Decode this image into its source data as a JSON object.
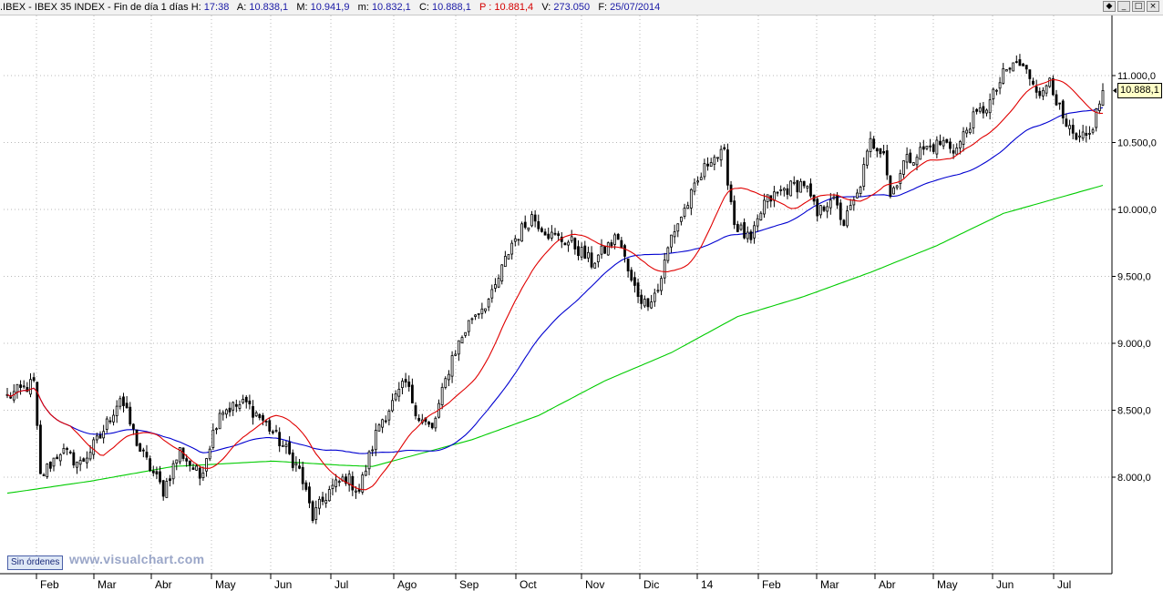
{
  "header": {
    "prefix": ".IBEX - IBEX 35 INDEX - Fin de día 1 días",
    "h_label": "H:",
    "h_value": "17:38",
    "a_label": "A:",
    "a_value": "10.838,1",
    "m_label": "M:",
    "m_value": "10.941,9",
    "mm_label": "m:",
    "mm_value": "10.832,1",
    "c_label": "C:",
    "c_value": "10.888,1",
    "p_label": "P :",
    "p_value": "10.881,4",
    "v_label": "V:",
    "v_value": "273.050",
    "f_label": "F:",
    "f_value": "25/07/2014"
  },
  "window_buttons": [
    "◆",
    "_",
    "□",
    "×"
  ],
  "status_button": "Sin órdenes",
  "watermark": "www.visualchart.com",
  "last_price_tag": "10.888,1",
  "colors": {
    "background": "#ffffff",
    "grid": "#b8b8b8",
    "candle": "#000000",
    "ma_short": "#e00000",
    "ma_medium": "#0000d0",
    "ma_long": "#00cc00",
    "price_tag_bg": "#ffffc8"
  },
  "chart_data": {
    "type": "candlestick",
    "title": ".IBEX - IBEX 35 INDEX",
    "ylim": [
      7400,
      11300
    ],
    "y_ticks": [
      {
        "value": 8000,
        "label": "8.000,0"
      },
      {
        "value": 8500,
        "label": "8.500,0"
      },
      {
        "value": 9000,
        "label": "9.000,0"
      },
      {
        "value": 9500,
        "label": "9.500,0"
      },
      {
        "value": 10000,
        "label": "10.000,0"
      },
      {
        "value": 10500,
        "label": "10.500,0"
      },
      {
        "value": 11000,
        "label": "11.000,0"
      }
    ],
    "x_ticks": [
      "Feb",
      "Mar",
      "Abr",
      "May",
      "Jun",
      "Jul",
      "Ago",
      "Sep",
      "Oct",
      "Nov",
      "Dic",
      "14",
      "Feb",
      "Mar",
      "Abr",
      "May",
      "Jun",
      "Jul"
    ],
    "grid": true,
    "close_anchors": [
      {
        "i": 0,
        "v": 8600
      },
      {
        "i": 8,
        "v": 8700
      },
      {
        "i": 10,
        "v": 8000
      },
      {
        "i": 16,
        "v": 8200
      },
      {
        "i": 22,
        "v": 8100
      },
      {
        "i": 28,
        "v": 8300
      },
      {
        "i": 34,
        "v": 8600
      },
      {
        "i": 40,
        "v": 8200
      },
      {
        "i": 47,
        "v": 7900
      },
      {
        "i": 52,
        "v": 8200
      },
      {
        "i": 58,
        "v": 8000
      },
      {
        "i": 64,
        "v": 8500
      },
      {
        "i": 72,
        "v": 8550
      },
      {
        "i": 78,
        "v": 8400
      },
      {
        "i": 84,
        "v": 8200
      },
      {
        "i": 88,
        "v": 8050
      },
      {
        "i": 92,
        "v": 7700
      },
      {
        "i": 97,
        "v": 7900
      },
      {
        "i": 102,
        "v": 8000
      },
      {
        "i": 106,
        "v": 7900
      },
      {
        "i": 112,
        "v": 8400
      },
      {
        "i": 120,
        "v": 8700
      },
      {
        "i": 124,
        "v": 8450
      },
      {
        "i": 128,
        "v": 8350
      },
      {
        "i": 134,
        "v": 8900
      },
      {
        "i": 140,
        "v": 9200
      },
      {
        "i": 146,
        "v": 9350
      },
      {
        "i": 152,
        "v": 9750
      },
      {
        "i": 158,
        "v": 9950
      },
      {
        "i": 164,
        "v": 9800
      },
      {
        "i": 170,
        "v": 9750
      },
      {
        "i": 176,
        "v": 9600
      },
      {
        "i": 180,
        "v": 9700
      },
      {
        "i": 184,
        "v": 9800
      },
      {
        "i": 188,
        "v": 9450
      },
      {
        "i": 192,
        "v": 9300
      },
      {
        "i": 196,
        "v": 9400
      },
      {
        "i": 200,
        "v": 9800
      },
      {
        "i": 206,
        "v": 10100
      },
      {
        "i": 212,
        "v": 10400
      },
      {
        "i": 216,
        "v": 10400
      },
      {
        "i": 219,
        "v": 9900
      },
      {
        "i": 224,
        "v": 9750
      },
      {
        "i": 228,
        "v": 10050
      },
      {
        "i": 234,
        "v": 10150
      },
      {
        "i": 240,
        "v": 10200
      },
      {
        "i": 244,
        "v": 9950
      },
      {
        "i": 248,
        "v": 10100
      },
      {
        "i": 252,
        "v": 9900
      },
      {
        "i": 256,
        "v": 10100
      },
      {
        "i": 260,
        "v": 10500
      },
      {
        "i": 264,
        "v": 10450
      },
      {
        "i": 266,
        "v": 10100
      },
      {
        "i": 270,
        "v": 10350
      },
      {
        "i": 276,
        "v": 10450
      },
      {
        "i": 282,
        "v": 10500
      },
      {
        "i": 286,
        "v": 10450
      },
      {
        "i": 290,
        "v": 10650
      },
      {
        "i": 296,
        "v": 10800
      },
      {
        "i": 300,
        "v": 11000
      },
      {
        "i": 304,
        "v": 11100
      },
      {
        "i": 308,
        "v": 11000
      },
      {
        "i": 312,
        "v": 10850
      },
      {
        "i": 314,
        "v": 11000
      },
      {
        "i": 318,
        "v": 10650
      },
      {
        "i": 322,
        "v": 10500
      },
      {
        "i": 326,
        "v": 10550
      },
      {
        "i": 330,
        "v": 10888
      }
    ],
    "ma_short_period": 20,
    "ma_medium_period": 50,
    "ma_long_anchors": [
      {
        "i": 0,
        "v": 7880
      },
      {
        "i": 25,
        "v": 7970
      },
      {
        "i": 50,
        "v": 8080
      },
      {
        "i": 80,
        "v": 8120
      },
      {
        "i": 100,
        "v": 8090
      },
      {
        "i": 110,
        "v": 8080
      },
      {
        "i": 125,
        "v": 8180
      },
      {
        "i": 140,
        "v": 8280
      },
      {
        "i": 160,
        "v": 8460
      },
      {
        "i": 180,
        "v": 8720
      },
      {
        "i": 200,
        "v": 8930
      },
      {
        "i": 220,
        "v": 9200
      },
      {
        "i": 240,
        "v": 9350
      },
      {
        "i": 260,
        "v": 9530
      },
      {
        "i": 280,
        "v": 9730
      },
      {
        "i": 300,
        "v": 9970
      },
      {
        "i": 330,
        "v": 10180
      }
    ],
    "last_close": 10888.1
  }
}
